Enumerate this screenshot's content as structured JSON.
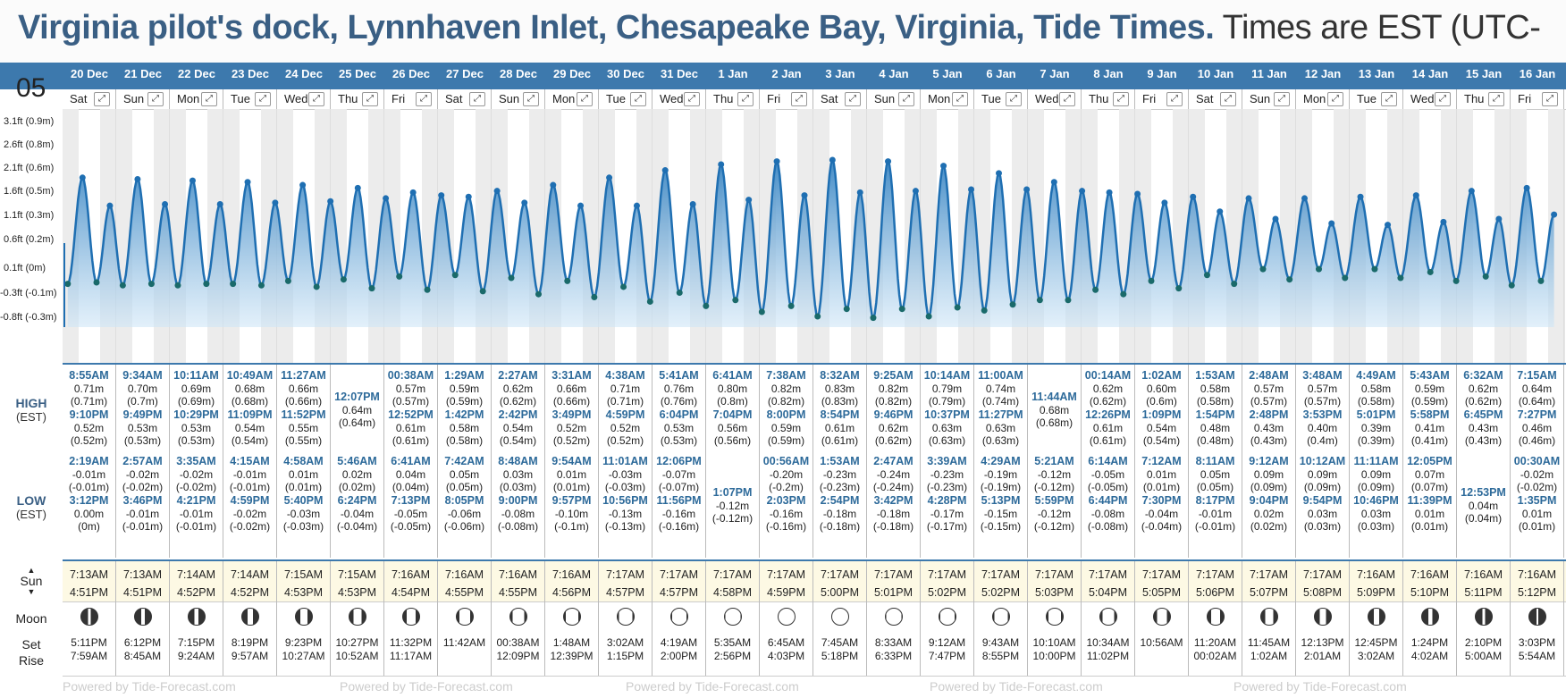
{
  "title": {
    "bold": "Virginia pilot's dock, Lynnhaven Inlet, Chesapeake Bay, Virginia, Tide Times.",
    "rest": " Times are EST (UTC-"
  },
  "side": {
    "high": "HIGH",
    "low": "LOW",
    "est": "(EST)",
    "sun": "Sun",
    "moon": "Moon",
    "set": "Set",
    "rise": "Rise",
    "top_label": "05"
  },
  "footer": "Powered by Tide-Forecast.com",
  "y_axis": [
    "3.1ft (0.9m)",
    "2.6ft (0.8m)",
    "2.1ft (0.6m)",
    "1.6ft (0.5m)",
    "1.1ft (0.3m)",
    "0.6ft (0.2m)",
    "0.1ft (0m)",
    "-0.3ft (-0.1m)",
    "-0.8ft (-0.3m)"
  ],
  "days": [
    {
      "date": "20 Dec",
      "dow": "Sat",
      "highs": [
        [
          "8:55AM",
          "0.71m",
          "(0.71m)"
        ],
        [
          "9:10PM",
          "0.52m",
          "(0.52m)"
        ]
      ],
      "lows": [
        [
          "2:19AM",
          "-0.01m",
          "(-0.01m)"
        ],
        [
          "3:12PM",
          "0.00m",
          "(0m)"
        ]
      ],
      "sun": [
        "7:13AM",
        "4:51PM"
      ],
      "moon": [
        "5:11PM",
        "7:59AM"
      ],
      "phase": 0.85
    },
    {
      "date": "21 Dec",
      "dow": "Sun",
      "highs": [
        [
          "9:34AM",
          "0.70m",
          "(0.7m)"
        ],
        [
          "9:49PM",
          "0.53m",
          "(0.53m)"
        ]
      ],
      "lows": [
        [
          "2:57AM",
          "-0.02m",
          "(-0.02m)"
        ],
        [
          "3:46PM",
          "-0.01m",
          "(-0.01m)"
        ]
      ],
      "sun": [
        "7:13AM",
        "4:51PM"
      ],
      "moon": [
        "6:12PM",
        "8:45AM"
      ],
      "phase": 0.8
    },
    {
      "date": "22 Dec",
      "dow": "Mon",
      "highs": [
        [
          "10:11AM",
          "0.69m",
          "(0.69m)"
        ],
        [
          "10:29PM",
          "0.53m",
          "(0.53m)"
        ]
      ],
      "lows": [
        [
          "3:35AM",
          "-0.02m",
          "(-0.02m)"
        ],
        [
          "4:21PM",
          "-0.01m",
          "(-0.01m)"
        ]
      ],
      "sun": [
        "7:14AM",
        "4:52PM"
      ],
      "moon": [
        "7:15PM",
        "9:24AM"
      ],
      "phase": 0.75
    },
    {
      "date": "23 Dec",
      "dow": "Tue",
      "highs": [
        [
          "10:49AM",
          "0.68m",
          "(0.68m)"
        ],
        [
          "11:09PM",
          "0.54m",
          "(0.54m)"
        ]
      ],
      "lows": [
        [
          "4:15AM",
          "-0.01m",
          "(-0.01m)"
        ],
        [
          "4:59PM",
          "-0.02m",
          "(-0.02m)"
        ]
      ],
      "sun": [
        "7:14AM",
        "4:52PM"
      ],
      "moon": [
        "8:19PM",
        "9:57AM"
      ],
      "phase": 0.65
    },
    {
      "date": "24 Dec",
      "dow": "Wed",
      "highs": [
        [
          "11:27AM",
          "0.66m",
          "(0.66m)"
        ],
        [
          "11:52PM",
          "0.55m",
          "(0.55m)"
        ]
      ],
      "lows": [
        [
          "4:58AM",
          "0.01m",
          "(0.01m)"
        ],
        [
          "5:40PM",
          "-0.03m",
          "(-0.03m)"
        ]
      ],
      "sun": [
        "7:15AM",
        "4:53PM"
      ],
      "moon": [
        "9:23PM",
        "10:27AM"
      ],
      "phase": 0.55
    },
    {
      "date": "25 Dec",
      "dow": "Thu",
      "highs": [
        [
          "12:07PM",
          "0.64m",
          "(0.64m)"
        ]
      ],
      "lows": [
        [
          "5:46AM",
          "0.02m",
          "(0.02m)"
        ],
        [
          "6:24PM",
          "-0.04m",
          "(-0.04m)"
        ]
      ],
      "sun": [
        "7:15AM",
        "4:53PM"
      ],
      "moon": [
        "10:27PM",
        "10:52AM"
      ],
      "phase": 0.5
    },
    {
      "date": "26 Dec",
      "dow": "Fri",
      "highs": [
        [
          "00:38AM",
          "0.57m",
          "(0.57m)"
        ],
        [
          "12:52PM",
          "0.61m",
          "(0.61m)"
        ]
      ],
      "lows": [
        [
          "6:41AM",
          "0.04m",
          "(0.04m)"
        ],
        [
          "7:13PM",
          "-0.05m",
          "(-0.05m)"
        ]
      ],
      "sun": [
        "7:16AM",
        "4:54PM"
      ],
      "moon": [
        "11:32PM",
        "11:17AM"
      ],
      "phase": 0.42
    },
    {
      "date": "27 Dec",
      "dow": "Sat",
      "highs": [
        [
          "1:29AM",
          "0.59m",
          "(0.59m)"
        ],
        [
          "1:42PM",
          "0.58m",
          "(0.58m)"
        ]
      ],
      "lows": [
        [
          "7:42AM",
          "0.05m",
          "(0.05m)"
        ],
        [
          "8:05PM",
          "-0.06m",
          "(-0.06m)"
        ]
      ],
      "sun": [
        "7:16AM",
        "4:55PM"
      ],
      "moon": [
        "",
        "11:42AM"
      ],
      "phase": 0.35
    },
    {
      "date": "28 Dec",
      "dow": "Sun",
      "highs": [
        [
          "2:27AM",
          "0.62m",
          "(0.62m)"
        ],
        [
          "2:42PM",
          "0.54m",
          "(0.54m)"
        ]
      ],
      "lows": [
        [
          "8:48AM",
          "0.03m",
          "(0.03m)"
        ],
        [
          "9:00PM",
          "-0.08m",
          "(-0.08m)"
        ]
      ],
      "sun": [
        "7:16AM",
        "4:55PM"
      ],
      "moon": [
        "00:38AM",
        "12:09PM"
      ],
      "phase": 0.28
    },
    {
      "date": "29 Dec",
      "dow": "Mon",
      "highs": [
        [
          "3:31AM",
          "0.66m",
          "(0.66m)"
        ],
        [
          "3:49PM",
          "0.52m",
          "(0.52m)"
        ]
      ],
      "lows": [
        [
          "9:54AM",
          "0.01m",
          "(0.01m)"
        ],
        [
          "9:57PM",
          "-0.10m",
          "(-0.1m)"
        ]
      ],
      "sun": [
        "7:16AM",
        "4:56PM"
      ],
      "moon": [
        "1:48AM",
        "12:39PM"
      ],
      "phase": 0.22
    },
    {
      "date": "30 Dec",
      "dow": "Tue",
      "highs": [
        [
          "4:38AM",
          "0.71m",
          "(0.71m)"
        ],
        [
          "4:59PM",
          "0.52m",
          "(0.52m)"
        ]
      ],
      "lows": [
        [
          "11:01AM",
          "-0.03m",
          "(-0.03m)"
        ],
        [
          "10:56PM",
          "-0.13m",
          "(-0.13m)"
        ]
      ],
      "sun": [
        "7:17AM",
        "4:57PM"
      ],
      "moon": [
        "3:02AM",
        "1:15PM"
      ],
      "phase": 0.16
    },
    {
      "date": "31 Dec",
      "dow": "Wed",
      "highs": [
        [
          "5:41AM",
          "0.76m",
          "(0.76m)"
        ],
        [
          "6:04PM",
          "0.53m",
          "(0.53m)"
        ]
      ],
      "lows": [
        [
          "12:06PM",
          "-0.07m",
          "(-0.07m)"
        ],
        [
          "11:56PM",
          "-0.16m",
          "(-0.16m)"
        ]
      ],
      "sun": [
        "7:17AM",
        "4:57PM"
      ],
      "moon": [
        "4:19AM",
        "2:00PM"
      ],
      "phase": 0.1
    },
    {
      "date": "1 Jan",
      "dow": "Thu",
      "highs": [
        [
          "6:41AM",
          "0.80m",
          "(0.8m)"
        ],
        [
          "7:04PM",
          "0.56m",
          "(0.56m)"
        ]
      ],
      "lows": [
        [
          "1:07PM",
          "-0.12m",
          "(-0.12m)"
        ]
      ],
      "sun": [
        "7:17AM",
        "4:58PM"
      ],
      "moon": [
        "5:35AM",
        "2:56PM"
      ],
      "phase": 0.04
    },
    {
      "date": "2 Jan",
      "dow": "Fri",
      "highs": [
        [
          "7:38AM",
          "0.82m",
          "(0.82m)"
        ],
        [
          "8:00PM",
          "0.59m",
          "(0.59m)"
        ]
      ],
      "lows": [
        [
          "00:56AM",
          "-0.20m",
          "(-0.2m)"
        ],
        [
          "2:03PM",
          "-0.16m",
          "(-0.16m)"
        ]
      ],
      "sun": [
        "7:17AM",
        "4:59PM"
      ],
      "moon": [
        "6:45AM",
        "4:03PM"
      ],
      "phase": 0.0
    },
    {
      "date": "3 Jan",
      "dow": "Sat",
      "highs": [
        [
          "8:32AM",
          "0.83m",
          "(0.83m)"
        ],
        [
          "8:54PM",
          "0.61m",
          "(0.61m)"
        ]
      ],
      "lows": [
        [
          "1:53AM",
          "-0.23m",
          "(-0.23m)"
        ],
        [
          "2:54PM",
          "-0.18m",
          "(-0.18m)"
        ]
      ],
      "sun": [
        "7:17AM",
        "5:00PM"
      ],
      "moon": [
        "7:45AM",
        "5:18PM"
      ],
      "phase": 0.0
    },
    {
      "date": "4 Jan",
      "dow": "Sun",
      "highs": [
        [
          "9:25AM",
          "0.82m",
          "(0.82m)"
        ],
        [
          "9:46PM",
          "0.62m",
          "(0.62m)"
        ]
      ],
      "lows": [
        [
          "2:47AM",
          "-0.24m",
          "(-0.24m)"
        ],
        [
          "3:42PM",
          "-0.18m",
          "(-0.18m)"
        ]
      ],
      "sun": [
        "7:17AM",
        "5:01PM"
      ],
      "moon": [
        "8:33AM",
        "6:33PM"
      ],
      "phase": 0.04
    },
    {
      "date": "5 Jan",
      "dow": "Mon",
      "highs": [
        [
          "10:14AM",
          "0.79m",
          "(0.79m)"
        ],
        [
          "10:37PM",
          "0.63m",
          "(0.63m)"
        ]
      ],
      "lows": [
        [
          "3:39AM",
          "-0.23m",
          "(-0.23m)"
        ],
        [
          "4:28PM",
          "-0.17m",
          "(-0.17m)"
        ]
      ],
      "sun": [
        "7:17AM",
        "5:02PM"
      ],
      "moon": [
        "9:12AM",
        "7:47PM"
      ],
      "phase": 0.1
    },
    {
      "date": "6 Jan",
      "dow": "Tue",
      "highs": [
        [
          "11:00AM",
          "0.74m",
          "(0.74m)"
        ],
        [
          "11:27PM",
          "0.63m",
          "(0.63m)"
        ]
      ],
      "lows": [
        [
          "4:29AM",
          "-0.19m",
          "(-0.19m)"
        ],
        [
          "5:13PM",
          "-0.15m",
          "(-0.15m)"
        ]
      ],
      "sun": [
        "7:17AM",
        "5:02PM"
      ],
      "moon": [
        "9:43AM",
        "8:55PM"
      ],
      "phase": 0.16
    },
    {
      "date": "7 Jan",
      "dow": "Wed",
      "highs": [
        [
          "11:44AM",
          "0.68m",
          "(0.68m)"
        ]
      ],
      "lows": [
        [
          "5:21AM",
          "-0.12m",
          "(-0.12m)"
        ],
        [
          "5:59PM",
          "-0.12m",
          "(-0.12m)"
        ]
      ],
      "sun": [
        "7:17AM",
        "5:03PM"
      ],
      "moon": [
        "10:10AM",
        "10:00PM"
      ],
      "phase": 0.22
    },
    {
      "date": "8 Jan",
      "dow": "Thu",
      "highs": [
        [
          "00:14AM",
          "0.62m",
          "(0.62m)"
        ],
        [
          "12:26PM",
          "0.61m",
          "(0.61m)"
        ]
      ],
      "lows": [
        [
          "6:14AM",
          "-0.05m",
          "(-0.05m)"
        ],
        [
          "6:44PM",
          "-0.08m",
          "(-0.08m)"
        ]
      ],
      "sun": [
        "7:17AM",
        "5:04PM"
      ],
      "moon": [
        "10:34AM",
        "11:02PM"
      ],
      "phase": 0.3
    },
    {
      "date": "9 Jan",
      "dow": "Fri",
      "highs": [
        [
          "1:02AM",
          "0.60m",
          "(0.6m)"
        ],
        [
          "1:09PM",
          "0.54m",
          "(0.54m)"
        ]
      ],
      "lows": [
        [
          "7:12AM",
          "0.01m",
          "(0.01m)"
        ],
        [
          "7:30PM",
          "-0.04m",
          "(-0.04m)"
        ]
      ],
      "sun": [
        "7:17AM",
        "5:05PM"
      ],
      "moon": [
        "10:56AM",
        ""
      ],
      "phase": 0.38
    },
    {
      "date": "10 Jan",
      "dow": "Sat",
      "highs": [
        [
          "1:53AM",
          "0.58m",
          "(0.58m)"
        ],
        [
          "1:54PM",
          "0.48m",
          "(0.48m)"
        ]
      ],
      "lows": [
        [
          "8:11AM",
          "0.05m",
          "(0.05m)"
        ],
        [
          "8:17PM",
          "-0.01m",
          "(-0.01m)"
        ]
      ],
      "sun": [
        "7:17AM",
        "5:06PM"
      ],
      "moon": [
        "11:20AM",
        "00:02AM"
      ],
      "phase": 0.45
    },
    {
      "date": "11 Jan",
      "dow": "Sun",
      "highs": [
        [
          "2:48AM",
          "0.57m",
          "(0.57m)"
        ],
        [
          "2:48PM",
          "0.43m",
          "(0.43m)"
        ]
      ],
      "lows": [
        [
          "9:12AM",
          "0.09m",
          "(0.09m)"
        ],
        [
          "9:04PM",
          "0.02m",
          "(0.02m)"
        ]
      ],
      "sun": [
        "7:17AM",
        "5:07PM"
      ],
      "moon": [
        "11:45AM",
        "1:02AM"
      ],
      "phase": 0.52
    },
    {
      "date": "12 Jan",
      "dow": "Mon",
      "highs": [
        [
          "3:48AM",
          "0.57m",
          "(0.57m)"
        ],
        [
          "3:53PM",
          "0.40m",
          "(0.4m)"
        ]
      ],
      "lows": [
        [
          "10:12AM",
          "0.09m",
          "(0.09m)"
        ],
        [
          "9:54PM",
          "0.03m",
          "(0.03m)"
        ]
      ],
      "sun": [
        "7:17AM",
        "5:08PM"
      ],
      "moon": [
        "12:13PM",
        "2:01AM"
      ],
      "phase": 0.6
    },
    {
      "date": "13 Jan",
      "dow": "Tue",
      "highs": [
        [
          "4:49AM",
          "0.58m",
          "(0.58m)"
        ],
        [
          "5:01PM",
          "0.39m",
          "(0.39m)"
        ]
      ],
      "lows": [
        [
          "11:11AM",
          "0.09m",
          "(0.09m)"
        ],
        [
          "10:46PM",
          "0.03m",
          "(0.03m)"
        ]
      ],
      "sun": [
        "7:16AM",
        "5:09PM"
      ],
      "moon": [
        "12:45PM",
        "3:02AM"
      ],
      "phase": 0.68
    },
    {
      "date": "14 Jan",
      "dow": "Wed",
      "highs": [
        [
          "5:43AM",
          "0.59m",
          "(0.59m)"
        ],
        [
          "5:58PM",
          "0.41m",
          "(0.41m)"
        ]
      ],
      "lows": [
        [
          "12:05PM",
          "0.07m",
          "(0.07m)"
        ],
        [
          "11:39PM",
          "0.01m",
          "(0.01m)"
        ]
      ],
      "sun": [
        "7:16AM",
        "5:10PM"
      ],
      "moon": [
        "1:24PM",
        "4:02AM"
      ],
      "phase": 0.75
    },
    {
      "date": "15 Jan",
      "dow": "Thu",
      "highs": [
        [
          "6:32AM",
          "0.62m",
          "(0.62m)"
        ],
        [
          "6:45PM",
          "0.43m",
          "(0.43m)"
        ]
      ],
      "lows": [
        [
          "12:53PM",
          "0.04m",
          "(0.04m)"
        ]
      ],
      "sun": [
        "7:16AM",
        "5:11PM"
      ],
      "moon": [
        "2:10PM",
        "5:00AM"
      ],
      "phase": 0.82
    },
    {
      "date": "16 Jan",
      "dow": "Fri",
      "highs": [
        [
          "7:15AM",
          "0.64m",
          "(0.64m)"
        ],
        [
          "7:27PM",
          "0.46m",
          "(0.46m)"
        ]
      ],
      "lows": [
        [
          "00:30AM",
          "-0.02m",
          "(-0.02m)"
        ],
        [
          "1:35PM",
          "0.01m",
          "(0.01m)"
        ]
      ],
      "sun": [
        "7:16AM",
        "5:12PM"
      ],
      "moon": [
        "3:03PM",
        "5:54AM"
      ],
      "phase": 0.88
    }
  ]
}
